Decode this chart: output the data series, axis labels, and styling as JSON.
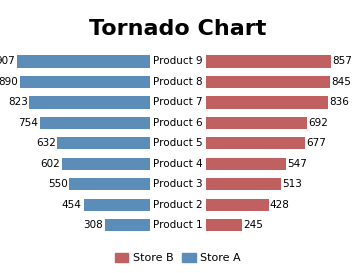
{
  "title": "Tornado Chart",
  "categories": [
    "Product 1",
    "Product 2",
    "Product 3",
    "Product 4",
    "Product 5",
    "Product 6",
    "Product 7",
    "Product 8",
    "Product 9"
  ],
  "store_a": [
    308,
    454,
    550,
    602,
    632,
    754,
    823,
    890,
    907
  ],
  "store_b": [
    245,
    428,
    513,
    547,
    677,
    692,
    836,
    845,
    857
  ],
  "color_a": "#5B8DB8",
  "color_b": "#C06060",
  "legend_b": "Store B",
  "legend_a": "Store A",
  "title_fontsize": 16,
  "label_fontsize": 7.5,
  "cat_fontsize": 7.5,
  "bar_height": 0.6,
  "xlim_left": 1000,
  "xlim_right": 1000,
  "background_color": "#ffffff"
}
